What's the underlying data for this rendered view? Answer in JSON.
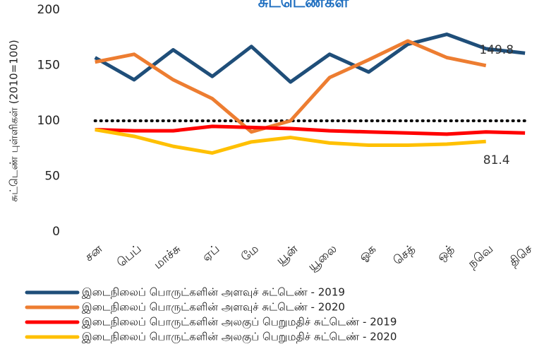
{
  "chart_data": {
    "type": "line",
    "title": "சுட்டெண்கள்",
    "y_label": "சுட்டெண் புள்ளிகள் (2010=100)",
    "categories": [
      "சன",
      "பெப்",
      "மாச்சு",
      "ஏப்",
      "மே",
      "யூன்",
      "யூலை",
      "ஓக",
      "செத்",
      "ஒத்",
      "நவெ",
      "திசெ"
    ],
    "series": [
      {
        "name": "இடைநிலைப் பொருட்களின் அளவுச் சுட்டெண் - 2019",
        "color": "#1f4e79",
        "values": [
          157,
          137,
          164,
          140,
          167,
          135,
          160,
          144,
          169,
          178,
          165,
          161
        ]
      },
      {
        "name": "இடைநிலைப் பொருட்களின் அளவுச் சுட்டெண் - 2020",
        "color": "#ed7d31",
        "values": [
          153,
          160,
          137,
          120,
          90,
          100,
          139,
          155,
          172,
          157,
          149.8,
          null
        ]
      },
      {
        "name": "இடைநிலைப் பொருட்களின் அலகுப் பெறுமதிச் சுட்டெண் - 2019",
        "color": "#ff0000",
        "values": [
          92,
          91,
          91,
          95,
          94,
          93,
          91,
          90,
          89,
          88,
          90,
          89
        ]
      },
      {
        "name": "இடைநிலைப் பொருட்களின் அலகுப் பெறுமதிச் சுட்டெண் - 2020",
        "color": "#ffc000",
        "values": [
          92,
          86,
          77,
          71,
          81,
          85,
          80,
          78,
          78,
          79,
          81.4,
          null
        ]
      }
    ],
    "reference_line": 100,
    "ylim": [
      0,
      200
    ],
    "yticks": [
      0,
      50,
      100,
      150,
      200
    ],
    "legend": "bottom"
  }
}
